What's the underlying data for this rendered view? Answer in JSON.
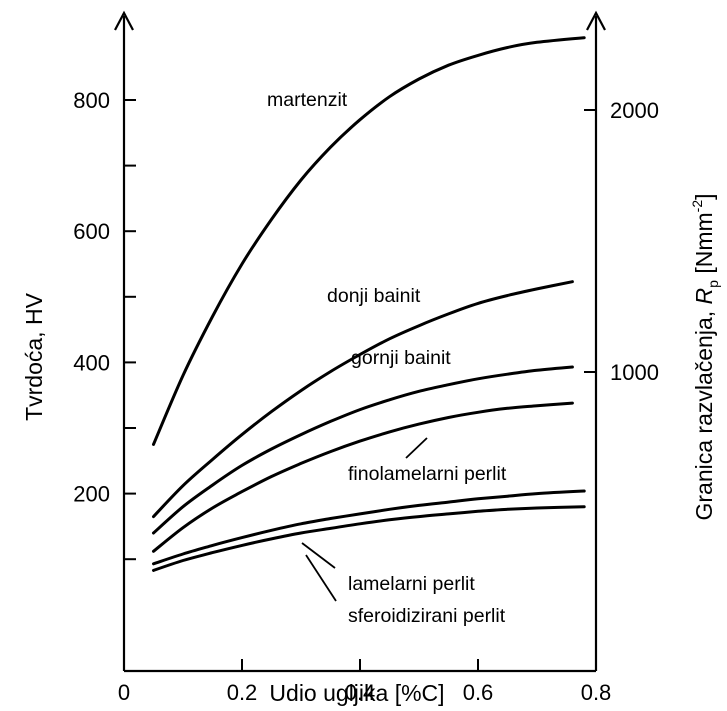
{
  "chart_data": {
    "type": "line",
    "xlabel": "Udio ugljika [%C]",
    "ylabel": "Tvrdoća, HV",
    "y2label": {
      "prefix": "Granica razvlačenja, ",
      "symbol": "R",
      "subscript": "p",
      "unit_open": " [Nmm",
      "superscript": "-2",
      "unit_close": "]"
    },
    "xlim": [
      0,
      0.8
    ],
    "ylim": [
      0,
      900
    ],
    "y2lim": [
      0,
      2500
    ],
    "xticks": [
      "0",
      "0.2",
      "0.4",
      "0.6",
      "0.8"
    ],
    "yticks": [
      "200",
      "400",
      "600",
      "800"
    ],
    "y2ticks": [
      "1000",
      "2000"
    ],
    "grid": false,
    "series": [
      {
        "name": "martenzit",
        "x": [
          0.05,
          0.1,
          0.15,
          0.2,
          0.25,
          0.3,
          0.35,
          0.4,
          0.45,
          0.5,
          0.55,
          0.6,
          0.65,
          0.7,
          0.78
        ],
        "y": [
          275,
          380,
          470,
          550,
          618,
          678,
          728,
          770,
          805,
          832,
          853,
          868,
          880,
          888,
          895
        ]
      },
      {
        "name": "donji bainit",
        "x": [
          0.05,
          0.1,
          0.15,
          0.2,
          0.25,
          0.3,
          0.35,
          0.4,
          0.45,
          0.5,
          0.55,
          0.6,
          0.65,
          0.7,
          0.76
        ],
        "y": [
          165,
          212,
          252,
          290,
          325,
          357,
          386,
          412,
          436,
          456,
          474,
          490,
          502,
          512,
          523
        ]
      },
      {
        "name": "gornji bainit",
        "x": [
          0.05,
          0.1,
          0.15,
          0.2,
          0.25,
          0.3,
          0.35,
          0.4,
          0.45,
          0.5,
          0.55,
          0.6,
          0.65,
          0.7,
          0.76
        ],
        "y": [
          140,
          180,
          213,
          243,
          268,
          290,
          310,
          328,
          343,
          356,
          366,
          375,
          382,
          388,
          393
        ]
      },
      {
        "name": "finolamelarni perlit",
        "x": [
          0.05,
          0.1,
          0.15,
          0.2,
          0.25,
          0.3,
          0.35,
          0.4,
          0.45,
          0.5,
          0.55,
          0.6,
          0.65,
          0.7,
          0.76
        ],
        "y": [
          112,
          148,
          178,
          203,
          226,
          246,
          264,
          280,
          294,
          306,
          316,
          324,
          330,
          334,
          338
        ]
      },
      {
        "name": "lamelarni perlit",
        "x": [
          0.05,
          0.1,
          0.15,
          0.2,
          0.25,
          0.3,
          0.35,
          0.4,
          0.45,
          0.5,
          0.55,
          0.6,
          0.65,
          0.7,
          0.78
        ],
        "y": [
          93,
          108,
          121,
          133,
          144,
          154,
          162,
          169,
          176,
          182,
          187,
          192,
          196,
          200,
          204
        ]
      },
      {
        "name": "sferoidizirani perlit",
        "x": [
          0.05,
          0.1,
          0.15,
          0.2,
          0.25,
          0.3,
          0.35,
          0.4,
          0.45,
          0.5,
          0.55,
          0.6,
          0.65,
          0.7,
          0.78
        ],
        "y": [
          83,
          98,
          110,
          121,
          131,
          140,
          147,
          154,
          160,
          165,
          169,
          173,
          176,
          178,
          180
        ]
      }
    ]
  }
}
